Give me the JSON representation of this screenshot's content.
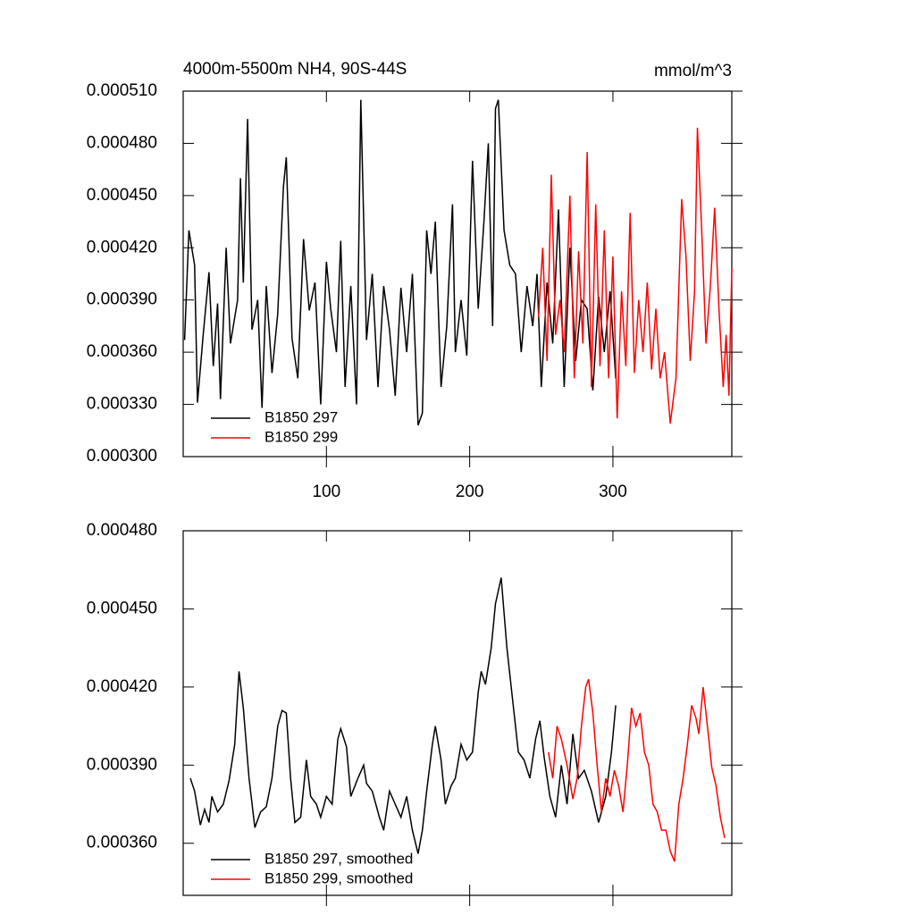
{
  "chart_data": [
    {
      "type": "line",
      "title": "4000m-5500m NH4, 90S-44S",
      "units": "mmol/m^3",
      "xlim": [
        0,
        383
      ],
      "xticks": [
        100,
        200,
        300
      ],
      "ylim": [
        0.0003,
        0.00051
      ],
      "yticks": [
        {
          "value": 0.0003,
          "label": "0.000300"
        },
        {
          "value": 0.00033,
          "label": "0.000330"
        },
        {
          "value": 0.00036,
          "label": "0.000360"
        },
        {
          "value": 0.00039,
          "label": "0.000390"
        },
        {
          "value": 0.00042,
          "label": "0.000420"
        },
        {
          "value": 0.00045,
          "label": "0.000450"
        },
        {
          "value": 0.00048,
          "label": "0.000480"
        },
        {
          "value": 0.00051,
          "label": "0.000510"
        }
      ],
      "series": [
        {
          "name": "B1850 297",
          "color": "#000000",
          "x": [
            1,
            4,
            8,
            10,
            14,
            18,
            21,
            24,
            26,
            30,
            33,
            38,
            40,
            42,
            45,
            48,
            52,
            55,
            58,
            62,
            66,
            70,
            72,
            76,
            80,
            84,
            88,
            92,
            96,
            100,
            103,
            107,
            110,
            113,
            117,
            121,
            124,
            128,
            132,
            136,
            140,
            144,
            148,
            152,
            156,
            160,
            164,
            167,
            170,
            173,
            176,
            180,
            184,
            188,
            190,
            194,
            198,
            202,
            206,
            210,
            213,
            216,
            218,
            220,
            224,
            228,
            232,
            236,
            240,
            244,
            247,
            250,
            254,
            258,
            262,
            266,
            270,
            274,
            278,
            282,
            286,
            290,
            294,
            298,
            302
          ],
          "values": [
            0.000367,
            0.00043,
            0.00041,
            0.000331,
            0.00037,
            0.000406,
            0.000352,
            0.000388,
            0.000333,
            0.00042,
            0.000365,
            0.00039,
            0.00046,
            0.0004,
            0.000494,
            0.000373,
            0.00039,
            0.000328,
            0.000398,
            0.000348,
            0.000382,
            0.000455,
            0.000472,
            0.000368,
            0.000345,
            0.000425,
            0.000384,
            0.0004,
            0.00033,
            0.000412,
            0.000385,
            0.00036,
            0.000424,
            0.00034,
            0.000398,
            0.00033,
            0.000505,
            0.000367,
            0.000405,
            0.00034,
            0.000398,
            0.000373,
            0.000335,
            0.000397,
            0.00036,
            0.000405,
            0.000318,
            0.000325,
            0.00043,
            0.000405,
            0.000435,
            0.00034,
            0.000375,
            0.000445,
            0.00036,
            0.00039,
            0.000358,
            0.00047,
            0.000385,
            0.000436,
            0.00048,
            0.000375,
            0.0005,
            0.000505,
            0.00043,
            0.00041,
            0.000405,
            0.00036,
            0.000398,
            0.000375,
            0.000405,
            0.00034,
            0.0004,
            0.000365,
            0.000442,
            0.00034,
            0.00042,
            0.000355,
            0.00039,
            0.000385,
            0.000338,
            0.000392,
            0.00036,
            0.000395,
            0.000345
          ]
        },
        {
          "name": "B1850 299",
          "color": "#ff0000",
          "x": [
            248,
            251,
            254,
            257,
            260,
            263,
            266,
            270,
            273,
            276,
            279,
            282,
            285,
            288,
            291,
            294,
            297,
            300,
            303,
            306,
            309,
            312,
            315,
            318,
            321,
            324,
            327,
            330,
            333,
            336,
            340,
            344,
            348,
            351,
            354,
            357,
            359,
            362,
            365,
            368,
            371,
            374,
            377,
            379,
            381,
            383
          ],
          "values": [
            0.00038,
            0.00042,
            0.000355,
            0.000462,
            0.00037,
            0.00039,
            0.00036,
            0.00045,
            0.000345,
            0.000418,
            0.000365,
            0.000475,
            0.00034,
            0.000445,
            0.000352,
            0.00043,
            0.000345,
            0.000415,
            0.000322,
            0.000395,
            0.000352,
            0.00044,
            0.000348,
            0.00039,
            0.00036,
            0.0004,
            0.00035,
            0.000385,
            0.000345,
            0.00036,
            0.000319,
            0.000345,
            0.000448,
            0.000415,
            0.000355,
            0.000395,
            0.000489,
            0.00043,
            0.000365,
            0.000398,
            0.000443,
            0.000385,
            0.00034,
            0.00037,
            0.000335,
            0.000408
          ]
        }
      ]
    },
    {
      "type": "line",
      "xlim": [
        0,
        383
      ],
      "xticks": [
        100,
        200,
        300
      ],
      "ylim": [
        0.00034,
        0.00048
      ],
      "yticks": [
        {
          "value": 0.00036,
          "label": "0.000360"
        },
        {
          "value": 0.00039,
          "label": "0.000390"
        },
        {
          "value": 0.00042,
          "label": "0.000420"
        },
        {
          "value": 0.00045,
          "label": "0.000450"
        },
        {
          "value": 0.00048,
          "label": "0.000480"
        }
      ],
      "series": [
        {
          "name": "B1850 297, smoothed",
          "color": "#000000",
          "x": [
            5,
            8,
            12,
            15,
            18,
            20,
            24,
            28,
            32,
            36,
            39,
            42,
            46,
            50,
            54,
            58,
            62,
            66,
            69,
            72,
            75,
            78,
            82,
            86,
            89,
            93,
            96,
            100,
            104,
            108,
            110,
            114,
            117,
            122,
            126,
            128,
            132,
            137,
            140,
            144,
            148,
            152,
            156,
            160,
            164,
            167,
            170,
            174,
            176,
            180,
            183,
            187,
            190,
            194,
            198,
            202,
            206,
            208,
            211,
            215,
            218,
            222,
            226,
            230,
            234,
            238,
            242,
            246,
            249,
            252,
            256,
            260,
            264,
            268,
            272,
            276,
            280,
            285,
            290,
            295,
            299,
            302
          ],
          "values": [
            0.000385,
            0.00038,
            0.000367,
            0.000373,
            0.000368,
            0.000378,
            0.000372,
            0.000375,
            0.000384,
            0.000398,
            0.000426,
            0.000412,
            0.000385,
            0.000366,
            0.000372,
            0.000374,
            0.000385,
            0.000405,
            0.000411,
            0.00041,
            0.000385,
            0.000368,
            0.00037,
            0.000392,
            0.000378,
            0.000375,
            0.00037,
            0.000378,
            0.000375,
            0.0004,
            0.000404,
            0.000397,
            0.000378,
            0.000385,
            0.00039,
            0.000383,
            0.00038,
            0.00037,
            0.000365,
            0.00038,
            0.000375,
            0.00037,
            0.000378,
            0.000365,
            0.000356,
            0.000365,
            0.00038,
            0.000398,
            0.000405,
            0.000392,
            0.000375,
            0.000382,
            0.000385,
            0.000398,
            0.000392,
            0.000395,
            0.000418,
            0.000426,
            0.000421,
            0.000435,
            0.000452,
            0.000462,
            0.000435,
            0.000415,
            0.000395,
            0.000392,
            0.000385,
            0.0004,
            0.000407,
            0.000393,
            0.000378,
            0.00037,
            0.00039,
            0.000375,
            0.000402,
            0.000385,
            0.000388,
            0.00038,
            0.000368,
            0.000378,
            0.000395,
            0.000413
          ]
        },
        {
          "name": "B1850 299, smoothed",
          "color": "#ff0000",
          "x": [
            255,
            258,
            261,
            264,
            268,
            272,
            275,
            278,
            281,
            283,
            286,
            289,
            292,
            295,
            298,
            301,
            304,
            307,
            310,
            313,
            316,
            319,
            322,
            325,
            328,
            331,
            334,
            337,
            340,
            343,
            346,
            349,
            352,
            355,
            358,
            360,
            363,
            366,
            369,
            372,
            375,
            378
          ],
          "values": [
            0.000395,
            0.000385,
            0.000405,
            0.0004,
            0.00039,
            0.000377,
            0.000385,
            0.000405,
            0.00042,
            0.000423,
            0.00041,
            0.00039,
            0.000372,
            0.000385,
            0.000378,
            0.000388,
            0.000382,
            0.000372,
            0.00039,
            0.000412,
            0.000405,
            0.00041,
            0.000395,
            0.00039,
            0.000375,
            0.000372,
            0.000365,
            0.000365,
            0.000357,
            0.000353,
            0.000375,
            0.000385,
            0.000398,
            0.000413,
            0.000408,
            0.000402,
            0.00042,
            0.000405,
            0.000389,
            0.000382,
            0.00037,
            0.000362
          ]
        }
      ]
    }
  ]
}
